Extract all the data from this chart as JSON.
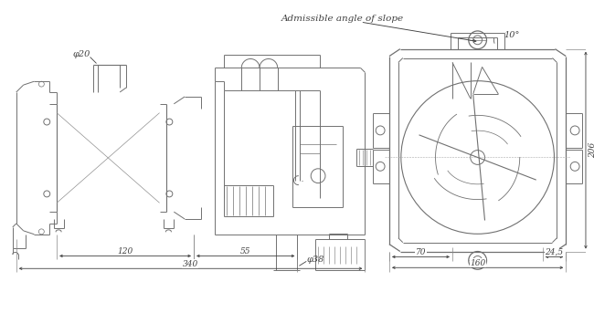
{
  "bg_color": "#ffffff",
  "lc": "#707070",
  "tc": "#404040",
  "dc": "#404040",
  "annotations": {
    "phi20": "φ20",
    "phi38": "φ38",
    "dim_120": "120",
    "dim_55": "55",
    "dim_340": "340",
    "dim_70": "70",
    "dim_245": "24,5",
    "dim_160": "160",
    "dim_206": "206",
    "angle_text": "Admissible angle of slope",
    "angle_val": "10°"
  },
  "figsize": [
    6.5,
    3.43
  ],
  "dpi": 100
}
